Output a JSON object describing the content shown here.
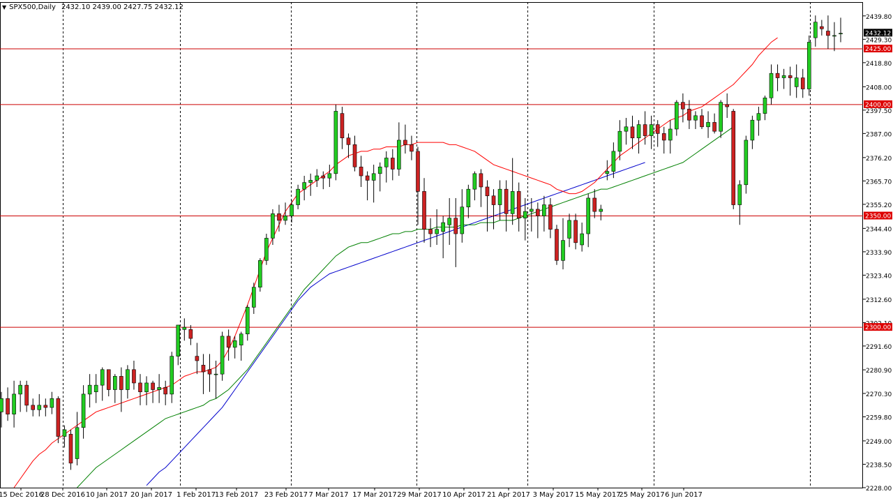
{
  "header": {
    "symbol_label": "SPX500,Daily",
    "ohlc_label": "2432.10 2439.00 2427.75 2432.12"
  },
  "chart_data": {
    "type": "candlestick",
    "symbol": "SPX500",
    "timeframe": "Daily",
    "ylim": [
      2228.0,
      2446.0
    ],
    "y_ticks": [
      "2439.80",
      "2429.30",
      "2418.80",
      "2408.00",
      "2397.50",
      "2387.00",
      "2376.20",
      "2365.70",
      "2355.20",
      "2344.40",
      "2333.90",
      "2323.40",
      "2312.60",
      "2302.10",
      "2291.60",
      "2280.90",
      "2270.30",
      "2259.80",
      "2249.00",
      "2238.50",
      "2228.00"
    ],
    "x_labels": [
      "15 Dec 2016",
      "28 Dec 2016",
      "10 Jan 2017",
      "20 Jan 2017",
      "1 Feb 2017",
      "13 Feb 2017",
      "23 Feb 2017",
      "7 Mar 2017",
      "17 Mar 2017",
      "29 Mar 2017",
      "10 Apr 2017",
      "21 Apr 2017",
      "3 May 2017",
      "15 May 2017",
      "25 May 2017",
      "6 Jun 2017"
    ],
    "levels": [
      {
        "label": "2425.00",
        "value": 2425.0
      },
      {
        "label": "2400.00",
        "value": 2400.0
      },
      {
        "label": "2350.00",
        "value": 2350.0
      },
      {
        "label": "2300.00",
        "value": 2300.0
      }
    ],
    "current_price_label": "2432.12",
    "current_price": 2432.12,
    "colors": {
      "bull": "#22cc22",
      "bear": "#cc2222",
      "wick": "#000000",
      "ma_fast": "#ff0000",
      "ma_mid": "#008000",
      "ma_slow": "#0000cc",
      "level": "#cc0000",
      "grid": "#000000",
      "axis": "#000000"
    },
    "candles": [
      [
        2262,
        2271,
        2255,
        2268
      ],
      [
        2268,
        2273,
        2258,
        2261
      ],
      [
        2261,
        2276,
        2255,
        2270
      ],
      [
        2270,
        2276,
        2262,
        2274
      ],
      [
        2274,
        2276,
        2262,
        2265
      ],
      [
        2265,
        2268,
        2260,
        2263
      ],
      [
        2263,
        2270,
        2260,
        2265
      ],
      [
        2265,
        2268,
        2260,
        2264
      ],
      [
        2264,
        2271,
        2261,
        2268
      ],
      [
        2268,
        2269,
        2248,
        2251
      ],
      [
        2251,
        2256,
        2246,
        2254
      ],
      [
        2252,
        2254,
        2236,
        2239
      ],
      [
        2241,
        2262,
        2238,
        2255
      ],
      [
        2255,
        2274,
        2250,
        2270
      ],
      [
        2270,
        2279,
        2264,
        2274
      ],
      [
        2271,
        2279,
        2266,
        2274
      ],
      [
        2274,
        2282,
        2267,
        2281
      ],
      [
        2281,
        2281,
        2269,
        2272
      ],
      [
        2272,
        2279,
        2266,
        2278
      ],
      [
        2278,
        2282,
        2262,
        2272
      ],
      [
        2272,
        2283,
        2268,
        2281
      ],
      [
        2281,
        2285,
        2272,
        2275
      ],
      [
        2275,
        2279,
        2265,
        2271
      ],
      [
        2271,
        2278,
        2265,
        2275
      ],
      [
        2275,
        2276,
        2266,
        2272
      ],
      [
        2272,
        2279,
        2266,
        2273
      ],
      [
        2273,
        2276,
        2265,
        2270
      ],
      [
        2270,
        2289,
        2266,
        2287
      ],
      [
        2287,
        2301,
        2283,
        2301
      ],
      [
        2299,
        2304,
        2294,
        2300
      ],
      [
        2299,
        2301,
        2292,
        2295
      ],
      [
        2287,
        2293,
        2279,
        2285
      ],
      [
        2283,
        2288,
        2270,
        2280
      ],
      [
        2281,
        2288,
        2271,
        2279
      ],
      [
        2279,
        2285,
        2268,
        2279
      ],
      [
        2279,
        2298,
        2276,
        2296
      ],
      [
        2296,
        2299,
        2285,
        2291
      ],
      [
        2291,
        2296,
        2286,
        2294
      ],
      [
        2292,
        2298,
        2285,
        2297
      ],
      [
        2297,
        2310,
        2294,
        2309
      ],
      [
        2309,
        2320,
        2306,
        2318
      ],
      [
        2318,
        2331,
        2316,
        2330
      ],
      [
        2330,
        2342,
        2328,
        2340
      ],
      [
        2340,
        2353,
        2337,
        2351
      ],
      [
        2351,
        2355,
        2343,
        2348
      ],
      [
        2348,
        2356,
        2346,
        2350
      ],
      [
        2350,
        2357,
        2347,
        2355
      ],
      [
        2355,
        2364,
        2353,
        2362
      ],
      [
        2362,
        2368,
        2357,
        2365
      ],
      [
        2365,
        2369,
        2359,
        2366
      ],
      [
        2366,
        2371,
        2363,
        2368
      ],
      [
        2368,
        2370,
        2362,
        2367
      ],
      [
        2367,
        2373,
        2363,
        2369
      ],
      [
        2369,
        2400,
        2366,
        2397
      ],
      [
        2396,
        2399,
        2380,
        2385
      ],
      [
        2385,
        2387,
        2376,
        2382
      ],
      [
        2382,
        2386,
        2370,
        2372
      ],
      [
        2372,
        2377,
        2363,
        2368
      ],
      [
        2368,
        2370,
        2357,
        2366
      ],
      [
        2366,
        2373,
        2356,
        2369
      ],
      [
        2369,
        2374,
        2361,
        2372
      ],
      [
        2372,
        2379,
        2365,
        2376
      ],
      [
        2376,
        2380,
        2366,
        2371
      ],
      [
        2371,
        2392,
        2368,
        2384
      ],
      [
        2384,
        2391,
        2378,
        2382
      ],
      [
        2382,
        2386,
        2375,
        2379
      ],
      [
        2379,
        2381,
        2346,
        2361
      ],
      [
        2361,
        2367,
        2338,
        2344
      ],
      [
        2344,
        2349,
        2336,
        2342
      ],
      [
        2342,
        2353,
        2337,
        2344
      ],
      [
        2343,
        2350,
        2331,
        2347
      ],
      [
        2346,
        2358,
        2337,
        2349
      ],
      [
        2349,
        2358,
        2327,
        2342
      ],
      [
        2342,
        2362,
        2338,
        2354
      ],
      [
        2354,
        2364,
        2349,
        2362
      ],
      [
        2362,
        2370,
        2357,
        2369
      ],
      [
        2369,
        2371,
        2354,
        2363
      ],
      [
        2363,
        2366,
        2343,
        2359
      ],
      [
        2359,
        2362,
        2344,
        2355
      ],
      [
        2355,
        2366,
        2348,
        2362
      ],
      [
        2362,
        2366,
        2343,
        2351
      ],
      [
        2351,
        2376,
        2346,
        2361
      ],
      [
        2361,
        2365,
        2343,
        2349
      ],
      [
        2349,
        2358,
        2339,
        2352
      ],
      [
        2352,
        2358,
        2343,
        2353
      ],
      [
        2353,
        2356,
        2340,
        2350
      ],
      [
        2350,
        2359,
        2343,
        2355
      ],
      [
        2355,
        2358,
        2340,
        2344
      ],
      [
        2344,
        2346,
        2328,
        2330
      ],
      [
        2330,
        2349,
        2326,
        2339
      ],
      [
        2340,
        2351,
        2336,
        2348
      ],
      [
        2348,
        2351,
        2335,
        2338
      ],
      [
        2337,
        2347,
        2334,
        2342
      ],
      [
        2342,
        2360,
        2336,
        2358
      ],
      [
        2358,
        2362,
        2349,
        2352
      ],
      [
        2352,
        2355,
        2348,
        2353
      ],
      [
        2369,
        2375,
        2366,
        2370
      ],
      [
        2370,
        2383,
        2367,
        2379
      ],
      [
        2379,
        2393,
        2375,
        2388
      ],
      [
        2388,
        2394,
        2382,
        2390
      ],
      [
        2390,
        2395,
        2380,
        2385
      ],
      [
        2385,
        2393,
        2378,
        2391
      ],
      [
        2391,
        2397,
        2382,
        2386
      ],
      [
        2386,
        2395,
        2380,
        2391
      ],
      [
        2391,
        2393,
        2381,
        2387
      ],
      [
        2387,
        2390,
        2378,
        2384
      ],
      [
        2384,
        2393,
        2378,
        2389
      ],
      [
        2389,
        2402,
        2386,
        2401
      ],
      [
        2401,
        2405,
        2392,
        2398
      ],
      [
        2398,
        2402,
        2389,
        2393
      ],
      [
        2393,
        2397,
        2389,
        2395
      ],
      [
        2395,
        2398,
        2389,
        2390
      ],
      [
        2390,
        2397,
        2385,
        2392
      ],
      [
        2392,
        2396,
        2387,
        2388
      ],
      [
        2388,
        2402,
        2385,
        2401
      ],
      [
        2400,
        2405,
        2394,
        2399
      ],
      [
        2397,
        2398,
        2353,
        2355
      ],
      [
        2355,
        2366,
        2346,
        2364
      ],
      [
        2364,
        2386,
        2360,
        2384
      ],
      [
        2384,
        2395,
        2380,
        2393
      ],
      [
        2393,
        2399,
        2386,
        2396
      ],
      [
        2396,
        2404,
        2393,
        2403
      ],
      [
        2403,
        2418,
        2400,
        2414
      ],
      [
        2414,
        2418,
        2406,
        2412
      ],
      [
        2412,
        2416,
        2407,
        2413
      ],
      [
        2413,
        2417,
        2404,
        2412
      ],
      [
        2408,
        2418,
        2403,
        2412
      ],
      [
        2412,
        2416,
        2403,
        2407
      ],
      [
        2407,
        2431,
        2404,
        2428
      ],
      [
        2430,
        2440,
        2426,
        2437
      ],
      [
        2435,
        2438,
        2431,
        2434
      ],
      [
        2433,
        2440,
        2425,
        2431
      ],
      [
        2431,
        2437,
        2424,
        2431
      ],
      [
        2432,
        2439,
        2428,
        2432
      ]
    ],
    "ma_fast": {
      "start": 0,
      "values": [
        2218,
        2223,
        2228,
        2232,
        2236,
        2240,
        2243,
        2245,
        2248,
        2250,
        2252,
        2254,
        2256,
        2258,
        2260,
        2262,
        2263,
        2264,
        2265,
        2266,
        2267,
        2268,
        2269,
        2270,
        2271,
        2272,
        2273,
        2274,
        2276,
        2278,
        2279,
        2280,
        2280,
        2281,
        2282,
        2285,
        2290,
        2296,
        2303,
        2310,
        2318,
        2326,
        2334,
        2340,
        2346,
        2352,
        2356,
        2360,
        2362,
        2364,
        2366,
        2368,
        2370,
        2373,
        2375,
        2377,
        2378,
        2379,
        2379,
        2380,
        2380,
        2381,
        2381,
        2381,
        2382,
        2382,
        2383,
        2383,
        2383,
        2383,
        2383,
        2382,
        2382,
        2381,
        2380,
        2379,
        2377,
        2375,
        2373,
        2372,
        2371,
        2370,
        2369,
        2368,
        2367,
        2366,
        2365,
        2364,
        2362,
        2361,
        2360,
        2360,
        2361,
        2363,
        2365,
        2368,
        2371,
        2374,
        2377,
        2379,
        2381,
        2383,
        2385,
        2387,
        2389,
        2391,
        2393,
        2394,
        2395,
        2397,
        2398,
        2399,
        2401,
        2403,
        2405,
        2407,
        2409,
        2412,
        2415,
        2418,
        2422,
        2425,
        2428,
        2430
      ]
    },
    "ma_mid": {
      "start": 0,
      "values": [
        2180,
        2185,
        2190,
        2194,
        2198,
        2202,
        2206,
        2210,
        2213,
        2216,
        2220,
        2224,
        2228,
        2231,
        2234,
        2237,
        2239,
        2241,
        2243,
        2245,
        2247,
        2249,
        2251,
        2253,
        2255,
        2257,
        2259,
        2260,
        2261,
        2262,
        2263,
        2264,
        2265,
        2267,
        2268,
        2270,
        2272,
        2275,
        2278,
        2281,
        2285,
        2289,
        2293,
        2297,
        2301,
        2305,
        2309,
        2313,
        2317,
        2320,
        2323,
        2326,
        2329,
        2332,
        2334,
        2336,
        2337,
        2338,
        2338,
        2339,
        2340,
        2341,
        2342,
        2342,
        2343,
        2343,
        2344,
        2344,
        2344,
        2345,
        2345,
        2345,
        2345,
        2346,
        2346,
        2346,
        2347,
        2347,
        2347,
        2348,
        2348,
        2348,
        2349,
        2350,
        2351,
        2352,
        2353,
        2354,
        2355,
        2356,
        2357,
        2358,
        2359,
        2360,
        2361,
        2362,
        2362,
        2363,
        2364,
        2365,
        2366,
        2367,
        2368,
        2369,
        2370,
        2371,
        2372,
        2373,
        2374,
        2376,
        2378,
        2380,
        2382,
        2384,
        2386,
        2388,
        2390
      ]
    },
    "ma_slow": {
      "start": 0,
      "values": [
        2160,
        2163,
        2166,
        2169,
        2172,
        2175,
        2178,
        2181,
        2184,
        2187,
        2190,
        2193,
        2196,
        2199,
        2202,
        2205,
        2208,
        2211,
        2214,
        2217,
        2220,
        2223,
        2226,
        2229,
        2232,
        2235,
        2237,
        2240,
        2243,
        2246,
        2249,
        2252,
        2255,
        2258,
        2261,
        2264,
        2268,
        2272,
        2276,
        2280,
        2284,
        2288,
        2292,
        2296,
        2300,
        2304,
        2308,
        2312,
        2315,
        2318,
        2320,
        2322,
        2324,
        2325,
        2326,
        2327,
        2328,
        2329,
        2330,
        2331,
        2332,
        2333,
        2334,
        2335,
        2336,
        2337,
        2338,
        2339,
        2340,
        2341,
        2342,
        2343,
        2344,
        2345,
        2346,
        2347,
        2348,
        2349,
        2350,
        2351,
        2352,
        2353,
        2354,
        2355,
        2356,
        2357,
        2358,
        2359,
        2360,
        2361,
        2362,
        2363,
        2364,
        2365,
        2366,
        2367,
        2368,
        2369,
        2370,
        2371,
        2372,
        2373,
        2374
      ]
    }
  }
}
